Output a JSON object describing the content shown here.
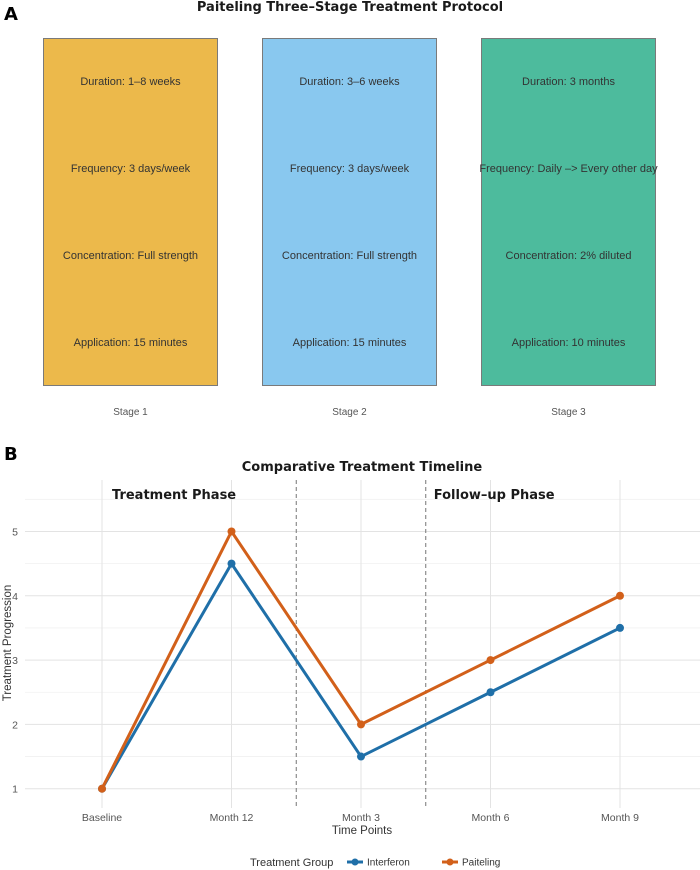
{
  "panel_a": {
    "letter": "A",
    "title": "Paiteling Three–Stage Treatment Protocol",
    "stages": [
      {
        "name": "Stage 1",
        "color": "#ECB94B",
        "lines": [
          "Duration: 1–8 weeks",
          "Frequency: 3 days/week",
          "Concentration: Full strength",
          "Application: 15 minutes"
        ]
      },
      {
        "name": "Stage 2",
        "color": "#89C8EF",
        "lines": [
          "Duration: 3–6 weeks",
          "Frequency: 3 days/week",
          "Concentration: Full strength",
          "Application: 15 minutes"
        ]
      },
      {
        "name": "Stage 3",
        "color": "#4DBB9D",
        "lines": [
          "Duration: 3 months",
          "Frequency: Daily –> Every other day",
          "Concentration: 2% diluted",
          "Application: 10 minutes"
        ]
      }
    ]
  },
  "panel_b": {
    "letter": "B",
    "legend_title": "Treatment Group"
  },
  "chart_data": {
    "type": "line",
    "title": "Comparative Treatment Timeline",
    "xlabel": "Time Points",
    "ylabel": "Treatment Progression",
    "categories": [
      "Baseline",
      "Month 12",
      "Month 3",
      "Month 6",
      "Month 9"
    ],
    "ylim": [
      0.7,
      5.8
    ],
    "yticks": [
      1,
      2,
      3,
      4,
      5
    ],
    "series": [
      {
        "name": "Interferon",
        "color": "#1F6FA8",
        "values": [
          1,
          4.5,
          1.5,
          2.5,
          3.5
        ]
      },
      {
        "name": "Paiteling",
        "color": "#D2601A",
        "values": [
          1,
          5,
          2,
          3,
          4
        ]
      }
    ],
    "annotations": [
      "Treatment Phase",
      "Follow–up Phase"
    ],
    "vlines_between": [
      [
        1,
        2
      ],
      [
        2,
        3
      ]
    ],
    "grid": true,
    "legend": "bottom"
  }
}
